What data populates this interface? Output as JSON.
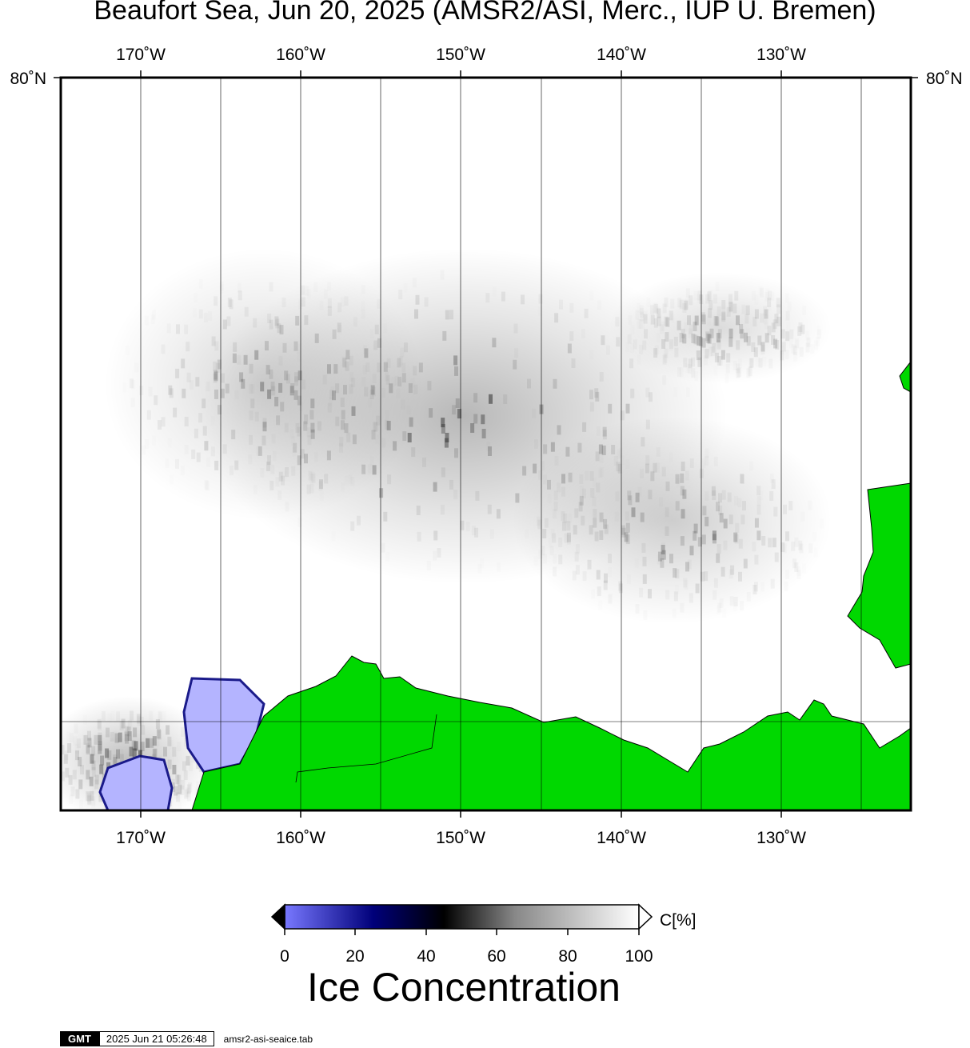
{
  "title": "Beaufort Sea, Jun 20, 2025 (AMSR2/ASI, Merc., IUP U. Bremen)",
  "map": {
    "lon_labels": [
      "170˚W",
      "160˚W",
      "150˚W",
      "140˚W",
      "130˚W"
    ],
    "lat_label_left": "80˚N",
    "lat_label_right": "80˚N",
    "land_color": "#00d800",
    "water_color": "#ffffff",
    "low_conc_color": "#b4b4ff"
  },
  "colorbar": {
    "unit_label": "C[%]",
    "tick_labels": [
      "0",
      "20",
      "40",
      "60",
      "80",
      "100"
    ],
    "title": "Ice Concentration",
    "stops": [
      "#7878ff",
      "#00007a",
      "#000000",
      "#888888",
      "#ffffff"
    ]
  },
  "footer": {
    "logo": "GMT",
    "timestamp": "2025 Jun 21 05:26:48",
    "filename": "amsr2-asi-seaice.tab"
  }
}
